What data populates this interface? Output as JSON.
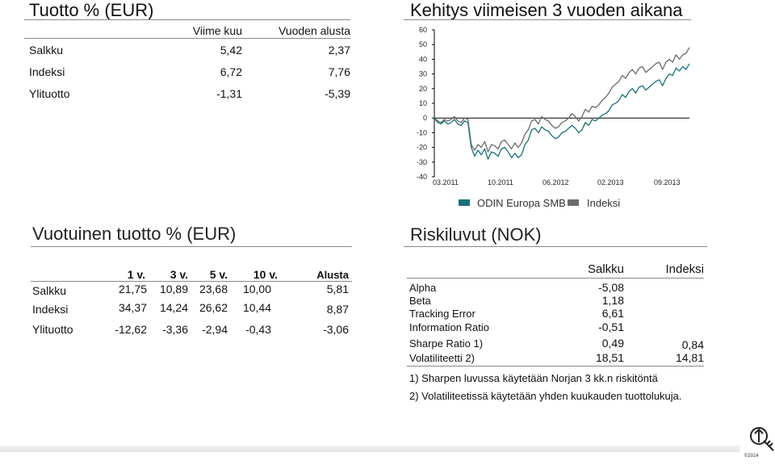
{
  "tuotto": {
    "title": "Tuotto % (EUR)",
    "headers": [
      "Viime kuu",
      "Vuoden alusta"
    ],
    "rows": [
      {
        "label": "Salkku",
        "values": [
          "5,42",
          "2,37"
        ]
      },
      {
        "label": "Indeksi",
        "values": [
          "6,72",
          "7,76"
        ]
      },
      {
        "label": "Ylituotto",
        "values": [
          "-1,31",
          "-5,39"
        ]
      }
    ]
  },
  "kehitys": {
    "title": "Kehitys viimeisen 3 vuoden aikana"
  },
  "chart_data": {
    "type": "line",
    "title": "Kehitys viimeisen 3 vuoden aikana",
    "xlabel": "",
    "ylabel": "",
    "x_tick_labels": [
      "03.2011",
      "10.2011",
      "06.2012",
      "02.2013",
      "09.2013"
    ],
    "y_ticks": [
      "60",
      "50",
      "40",
      "30",
      "20",
      "10",
      "0",
      "-10",
      "-20",
      "-30",
      "-40"
    ],
    "ylim": [
      -40,
      60
    ],
    "grid": false,
    "legend_position": "bottom",
    "series": [
      {
        "name": "ODIN Europa SMB",
        "color": "#1b7179",
        "values": [
          0,
          -3,
          -4,
          -2,
          -4,
          -3,
          -1,
          -4,
          -5,
          -2,
          -3,
          -20,
          -26,
          -22,
          -25,
          -21,
          -28,
          -23,
          -24,
          -26,
          -21,
          -20,
          -23,
          -27,
          -24,
          -27,
          -25,
          -18,
          -15,
          -8,
          -7,
          -10,
          -6,
          -8,
          -9,
          -12,
          -14,
          -13,
          -10,
          -9,
          -7,
          -5,
          -7,
          -10,
          -8,
          -3,
          -5,
          -1,
          -2,
          0,
          2,
          3,
          5,
          9,
          10,
          12,
          16,
          14,
          18,
          20,
          17,
          21,
          22,
          19,
          21,
          23,
          25,
          26,
          22,
          27,
          30,
          29,
          34,
          32,
          35,
          33,
          37
        ]
      },
      {
        "name": "Indeksi",
        "color": "#6b6b6b",
        "values": [
          0,
          -2,
          -3,
          -1,
          -2,
          -1,
          1,
          -2,
          -3,
          0,
          -1,
          -18,
          -22,
          -18,
          -20,
          -16,
          -23,
          -18,
          -19,
          -21,
          -16,
          -15,
          -18,
          -21,
          -17,
          -20,
          -17,
          -11,
          -8,
          -2,
          -1,
          -4,
          1,
          -1,
          -2,
          -5,
          -7,
          -6,
          -3,
          -2,
          0,
          3,
          1,
          -2,
          1,
          6,
          4,
          8,
          7,
          9,
          12,
          14,
          17,
          21,
          23,
          25,
          29,
          27,
          31,
          33,
          30,
          34,
          35,
          31,
          33,
          35,
          37,
          38,
          33,
          38,
          40,
          38,
          43,
          40,
          43,
          44,
          48
        ]
      }
    ]
  },
  "legend": {
    "items": [
      {
        "label": "ODIN Europa SMB",
        "color": "#1b7179"
      },
      {
        "label": "Indeksi",
        "color": "#6b6b6b"
      }
    ]
  },
  "vuotuinen": {
    "title": "Vuotuinen tuotto % (EUR)",
    "headers": [
      "1 v.",
      "3 v.",
      "5 v.",
      "10 v.",
      "Alusta"
    ],
    "rows": [
      {
        "label": "Salkku",
        "values": [
          "21,75",
          "10,89",
          "23,68",
          "10,00",
          "5,81"
        ]
      },
      {
        "label": "Indeksi",
        "values": [
          "34,37",
          "14,24",
          "26,62",
          "10,44",
          "8,87"
        ]
      },
      {
        "label": "Ylituotto",
        "values": [
          "-12,62",
          "-3,36",
          "-2,94",
          "-0,43",
          "-3,06"
        ]
      }
    ]
  },
  "riski": {
    "title": "Riskiluvut (NOK)",
    "headers": [
      "Salkku",
      "Indeksi"
    ],
    "rows": [
      {
        "label": "Alpha",
        "salkku": "-5,08",
        "indeksi": ""
      },
      {
        "label": "Beta",
        "salkku": "1,18",
        "indeksi": ""
      },
      {
        "label": "Tracking Error",
        "salkku": "6,61",
        "indeksi": ""
      },
      {
        "label": "Information Ratio",
        "salkku": "-0,51",
        "indeksi": ""
      },
      {
        "label": "Sharpe Ratio 1)",
        "salkku": "0,49",
        "indeksi": "0,84"
      },
      {
        "label": "Volatiliteetti 2)",
        "salkku": "18,51",
        "indeksi": "14,81"
      }
    ],
    "notes": [
      "1) Sharpen luvussa käytetään Norjan 3 kk.n riskitöntä",
      "2) Volatiliteetissä käytetään yhden kuukauden tuottolukuja."
    ]
  },
  "logo": {
    "text": "©2014"
  }
}
